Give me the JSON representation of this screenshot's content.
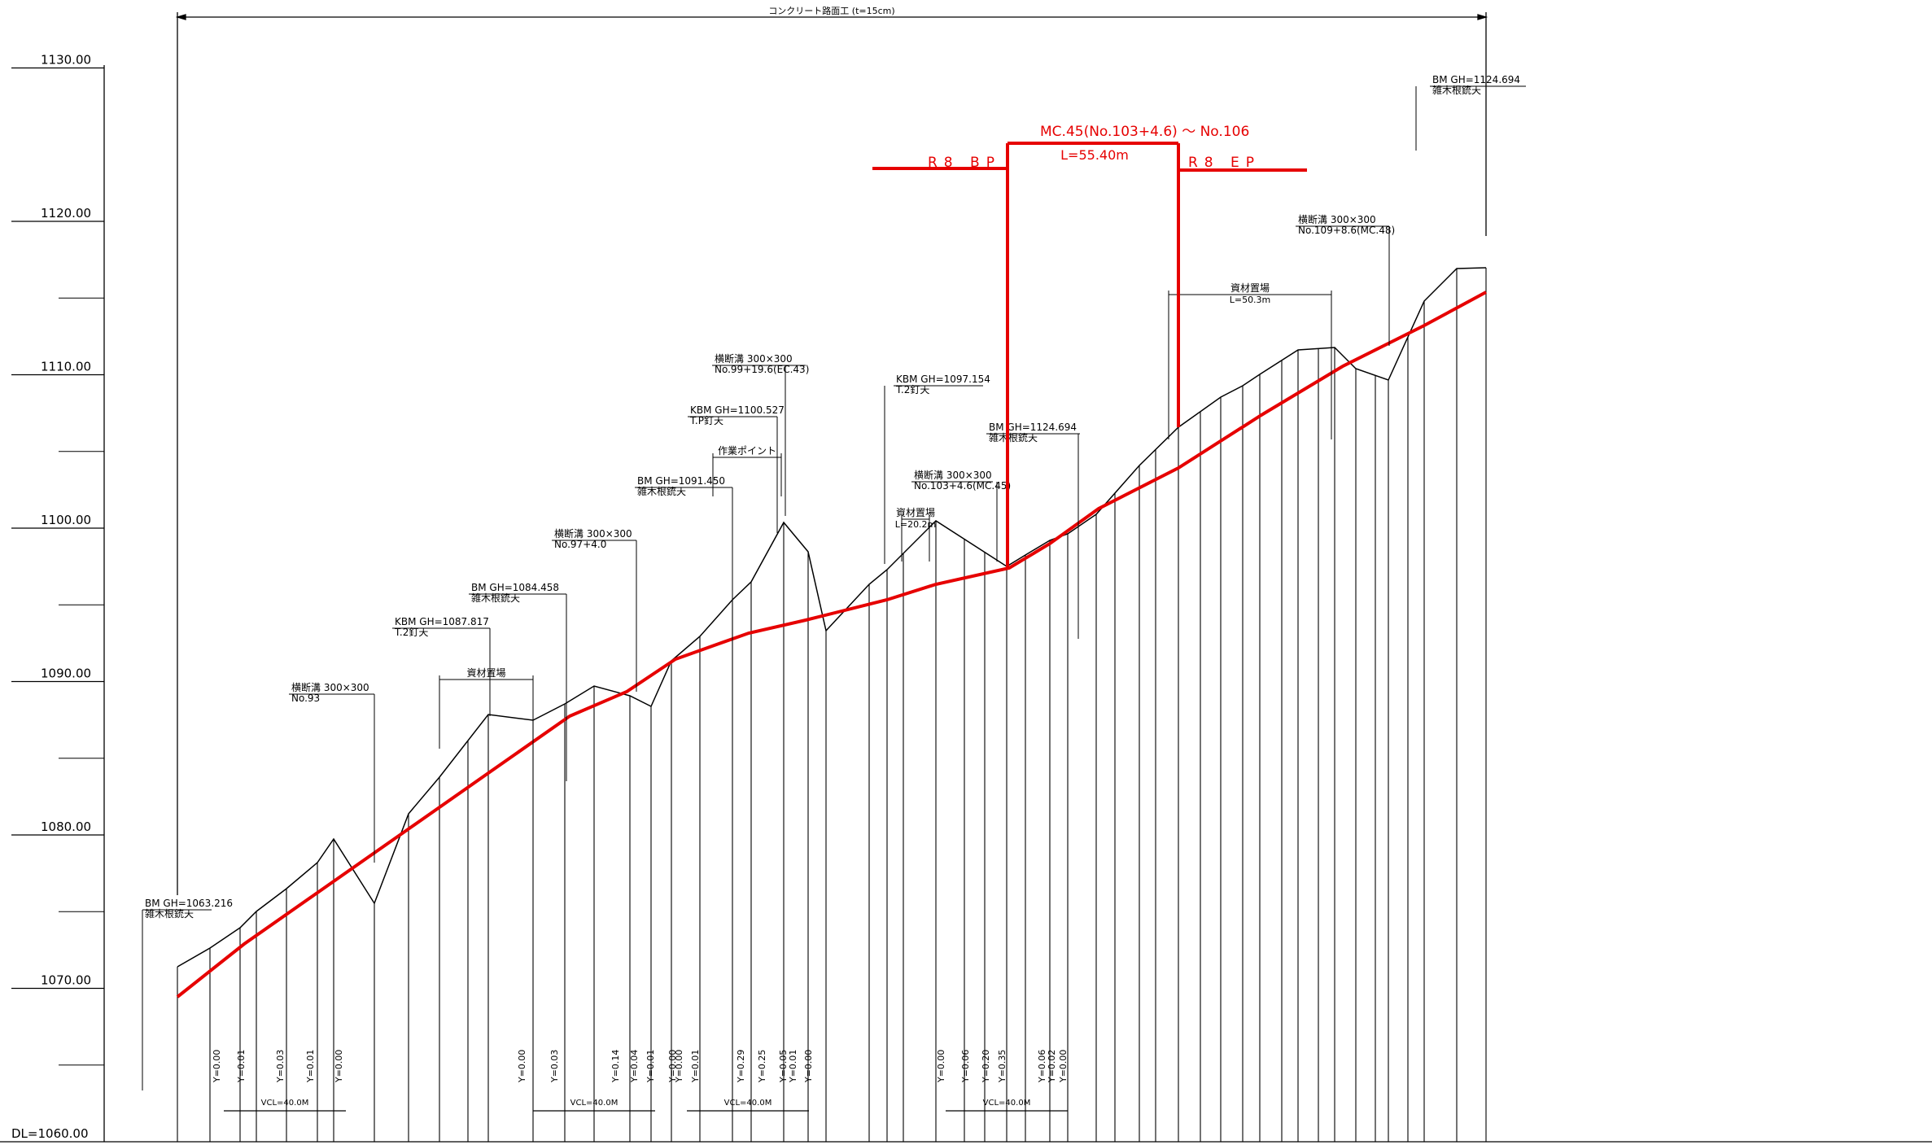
{
  "header": {
    "span_label": "コンクリート路面工 (t=15cm)"
  },
  "axis": {
    "datum_label": "DL=1060.00",
    "elevation_labels": [
      "1070.00",
      "1080.00",
      "1090.00",
      "1100.00",
      "1110.00",
      "1120.00",
      "1130.00"
    ]
  },
  "section": {
    "title": "MC.45(No.103+4.6) ～ No.106",
    "length": "L=55.40m",
    "bp": "R8 BP",
    "ep": "R8 EP"
  },
  "callouts": {
    "bm_start": {
      "l1": "BM GH=1063.216",
      "l2": "雑木根銃天"
    },
    "ditch_93": {
      "l1": "横断溝 300×300",
      "l2": "No.93"
    },
    "kbm_1087": {
      "l1": "KBM GH=1087.817",
      "l2": "T.2釘天"
    },
    "bm_1084": {
      "l1": "BM GH=1084.458",
      "l2": "雑木根銃天"
    },
    "storage_1": {
      "l1": "資材置場"
    },
    "ditch_97": {
      "l1": "横断溝 300×300",
      "l2": "No.97+4.0"
    },
    "bm_1091": {
      "l1": "BM GH=1091.450",
      "l2": "雑木根銃天"
    },
    "kbm_1100": {
      "l1": "KBM GH=1100.527",
      "l2": "T.P釘天"
    },
    "ditch_99": {
      "l1": "横断溝 300×300",
      "l2": "No.99+19.6(EC.43)"
    },
    "work_point": {
      "l1": "作業ポイント"
    },
    "kbm_1097": {
      "l1": "KBM GH=1097.154",
      "l2": "T.2釘天"
    },
    "ditch_103": {
      "l1": "横断溝 300×300",
      "l2": "No.103+4.6(MC.45)"
    },
    "storage_2": {
      "l1": "資材置場",
      "l2": "L=20.2m"
    },
    "bm_mid": {
      "l1": "BM GH=1124.694",
      "l2": "雑木根銃天"
    },
    "storage_3": {
      "l1": "資材置場",
      "l2": "L=50.3m"
    },
    "ditch_109": {
      "l1": "横断溝 300×300",
      "l2": "No.109+8.6(MC.48)"
    },
    "bm_end": {
      "l1": "BM GH=1124.694",
      "l2": "雑木根銃天"
    }
  },
  "y_values": [
    "Y=0.00",
    "Y=0.01",
    "Y=0.03",
    "Y=0.01",
    "Y=0.00",
    "Y=0.00",
    "Y=0.03",
    "Y=0.14",
    "Y=0.04",
    "Y=0.01",
    "Y=0.00",
    "Y=0.00",
    "Y=0.01",
    "Y=0.29",
    "Y=0.25",
    "Y=0.05",
    "Y=0.01",
    "Y=0.00",
    "Y=0.00",
    "Y=0.06",
    "Y=0.20",
    "Y=0.35",
    "Y=0.06",
    "Y=0.02",
    "Y=0.00"
  ],
  "vcl_labels": [
    "VCL=40.0M",
    "VCL=40.0M",
    "VCL=40.0M",
    "VCL=40.0M"
  ],
  "colors": {
    "ground": "#000000",
    "design": "#e60000"
  }
}
